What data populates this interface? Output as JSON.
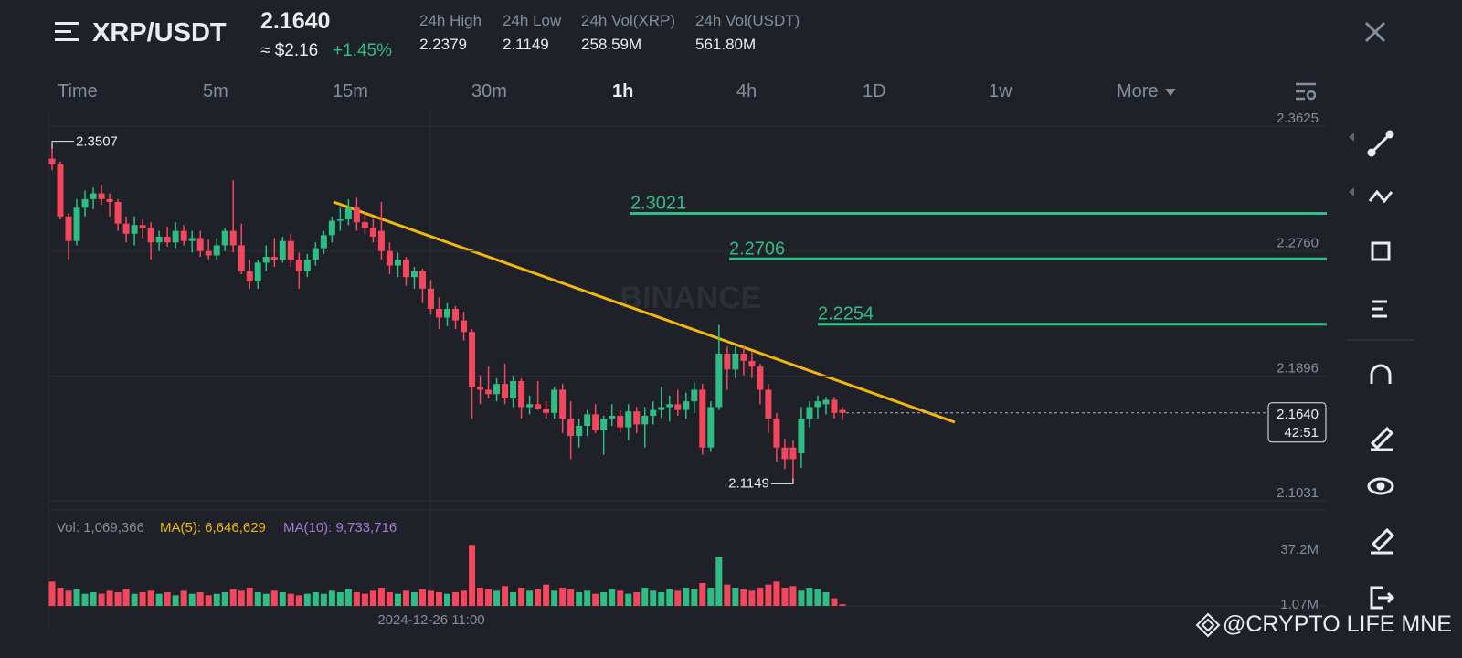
{
  "header": {
    "pair": "XRP/USDT",
    "price": "2.1640",
    "usd": "≈ $2.16",
    "change": "+1.45%",
    "stats": [
      {
        "label": "24h High",
        "value": "2.2379"
      },
      {
        "label": "24h Low",
        "value": "2.1149"
      },
      {
        "label": "24h Vol(XRP)",
        "value": "258.59M"
      },
      {
        "label": "24h Vol(USDT)",
        "value": "561.80M"
      }
    ]
  },
  "tabs": [
    "Time",
    "5m",
    "15m",
    "30m",
    "1h",
    "4h",
    "1D",
    "1w",
    "More"
  ],
  "active_tab": "1h",
  "watermark": "BINANCE",
  "credit": "@CRYPTO LIFE MNE",
  "chart_data": {
    "type": "candlestick",
    "ylim": [
      2.0968,
      2.3739
    ],
    "yticks": [
      2.3625,
      {
        "value": 2.276,
        "label": "2.2760"
      },
      2.1896,
      2.1031
    ],
    "grid": true,
    "up_color": "#2ebd85",
    "down_color": "#f6465d",
    "x_label": "2024-12-26 11:00",
    "levels": [
      2.3021,
      2.2706,
      2.2254
    ],
    "level_color": "#2ebd85",
    "last_price": {
      "value": 2.164,
      "label": "2.1640"
    },
    "countdown": "42:51",
    "candles": [
      [
        2.34,
        2.3507,
        2.332,
        2.336
      ],
      [
        2.336,
        2.338,
        2.298,
        2.3
      ],
      [
        2.3,
        2.302,
        2.27,
        2.283
      ],
      [
        2.283,
        2.312,
        2.28,
        2.306
      ],
      [
        2.306,
        2.318,
        2.3,
        2.312
      ],
      [
        2.312,
        2.32,
        2.305,
        2.316
      ],
      [
        2.316,
        2.322,
        2.308,
        2.312
      ],
      [
        2.312,
        2.316,
        2.3,
        2.31
      ],
      [
        2.31,
        2.312,
        2.29,
        2.295
      ],
      [
        2.295,
        2.3,
        2.282,
        2.288
      ],
      [
        2.288,
        2.3,
        2.28,
        2.294
      ],
      [
        2.294,
        2.298,
        2.285,
        2.292
      ],
      [
        2.292,
        2.296,
        2.27,
        2.282
      ],
      [
        2.282,
        2.29,
        2.276,
        2.286
      ],
      [
        2.286,
        2.293,
        2.279,
        2.282
      ],
      [
        2.282,
        2.296,
        2.278,
        2.29
      ],
      [
        2.29,
        2.294,
        2.28,
        2.283
      ],
      [
        2.283,
        2.29,
        2.275,
        2.285
      ],
      [
        2.285,
        2.29,
        2.272,
        2.276
      ],
      [
        2.276,
        2.284,
        2.27,
        2.273
      ],
      [
        2.273,
        2.285,
        2.27,
        2.28
      ],
      [
        2.28,
        2.292,
        2.276,
        2.29
      ],
      [
        2.29,
        2.325,
        2.275,
        2.28
      ],
      [
        2.28,
        2.295,
        2.26,
        2.262
      ],
      [
        2.262,
        2.27,
        2.25,
        2.255
      ],
      [
        2.255,
        2.27,
        2.25,
        2.268
      ],
      [
        2.268,
        2.28,
        2.262,
        2.272
      ],
      [
        2.272,
        2.285,
        2.265,
        2.27
      ],
      [
        2.27,
        2.286,
        2.268,
        2.283
      ],
      [
        2.283,
        2.288,
        2.265,
        2.27
      ],
      [
        2.27,
        2.275,
        2.25,
        2.262
      ],
      [
        2.262,
        2.274,
        2.258,
        2.27
      ],
      [
        2.27,
        2.282,
        2.266,
        2.278
      ],
      [
        2.278,
        2.29,
        2.274,
        2.287
      ],
      [
        2.287,
        2.3,
        2.282,
        2.297
      ],
      [
        2.297,
        2.306,
        2.29,
        2.298
      ],
      [
        2.298,
        2.312,
        2.294,
        2.306
      ],
      [
        2.306,
        2.313,
        2.29,
        2.296
      ],
      [
        2.296,
        2.303,
        2.288,
        2.292
      ],
      [
        2.292,
        2.298,
        2.282,
        2.286
      ],
      [
        2.29,
        2.31,
        2.27,
        2.276
      ],
      [
        2.276,
        2.282,
        2.26,
        2.266
      ],
      [
        2.266,
        2.275,
        2.258,
        2.27
      ],
      [
        2.27,
        2.272,
        2.252,
        2.258
      ],
      [
        2.258,
        2.265,
        2.25,
        2.262
      ],
      [
        2.262,
        2.264,
        2.24,
        2.25
      ],
      [
        2.25,
        2.256,
        2.232,
        2.236
      ],
      [
        2.236,
        2.244,
        2.222,
        2.23
      ],
      [
        2.23,
        2.24,
        2.224,
        2.236
      ],
      [
        2.236,
        2.238,
        2.222,
        2.228
      ],
      [
        2.228,
        2.234,
        2.214,
        2.22
      ],
      [
        2.22,
        2.222,
        2.16,
        2.182
      ],
      [
        2.182,
        2.19,
        2.17,
        2.18
      ],
      [
        2.18,
        2.196,
        2.174,
        2.177
      ],
      [
        2.177,
        2.188,
        2.172,
        2.184
      ],
      [
        2.184,
        2.198,
        2.17,
        2.174
      ],
      [
        2.174,
        2.19,
        2.168,
        2.186
      ],
      [
        2.186,
        2.188,
        2.16,
        2.168
      ],
      [
        2.168,
        2.176,
        2.163,
        2.17
      ],
      [
        2.17,
        2.186,
        2.166,
        2.167
      ],
      [
        2.167,
        2.172,
        2.16,
        2.164
      ],
      [
        2.164,
        2.182,
        2.16,
        2.18
      ],
      [
        2.18,
        2.184,
        2.15,
        2.16
      ],
      [
        2.16,
        2.172,
        2.132,
        2.148
      ],
      [
        2.148,
        2.16,
        2.14,
        2.155
      ],
      [
        2.155,
        2.166,
        2.148,
        2.163
      ],
      [
        2.163,
        2.17,
        2.15,
        2.152
      ],
      [
        2.152,
        2.162,
        2.135,
        2.16
      ],
      [
        2.16,
        2.17,
        2.155,
        2.162
      ],
      [
        2.162,
        2.166,
        2.15,
        2.154
      ],
      [
        2.154,
        2.17,
        2.145,
        2.165
      ],
      [
        2.165,
        2.168,
        2.15,
        2.156
      ],
      [
        2.156,
        2.168,
        2.14,
        2.162
      ],
      [
        2.162,
        2.172,
        2.156,
        2.166
      ],
      [
        2.166,
        2.182,
        2.16,
        2.168
      ],
      [
        2.168,
        2.176,
        2.158,
        2.17
      ],
      [
        2.17,
        2.18,
        2.162,
        2.166
      ],
      [
        2.166,
        2.178,
        2.16,
        2.172
      ],
      [
        2.172,
        2.185,
        2.164,
        2.18
      ],
      [
        2.18,
        2.184,
        2.135,
        2.14
      ],
      [
        2.14,
        2.172,
        2.137,
        2.168
      ],
      [
        2.168,
        2.225,
        2.166,
        2.205
      ],
      [
        2.205,
        2.21,
        2.18,
        2.194
      ],
      [
        2.194,
        2.21,
        2.188,
        2.205
      ],
      [
        2.205,
        2.21,
        2.19,
        2.2
      ],
      [
        2.2,
        2.206,
        2.188,
        2.196
      ],
      [
        2.196,
        2.198,
        2.17,
        2.18
      ],
      [
        2.18,
        2.184,
        2.15,
        2.16
      ],
      [
        2.16,
        2.164,
        2.13,
        2.14
      ],
      [
        2.14,
        2.146,
        2.125,
        2.132
      ],
      [
        2.14,
        2.145,
        2.1149,
        2.132
      ],
      [
        2.136,
        2.168,
        2.126,
        2.16
      ],
      [
        2.16,
        2.172,
        2.154,
        2.168
      ],
      [
        2.168,
        2.176,
        2.16,
        2.172
      ],
      [
        2.17,
        2.175,
        2.163,
        2.173
      ],
      [
        2.173,
        2.175,
        2.16,
        2.164
      ],
      [
        2.166,
        2.168,
        2.159,
        2.164
      ]
    ],
    "volume": {
      "label": "Vol: 1,069,366",
      "ma5": "MA(5): 6,646,629",
      "ma10": "MA(10): 9,733,716",
      "ylim": [
        0,
        45
      ],
      "yticks": [
        {
          "value": 37.2,
          "label": "37.2M"
        },
        {
          "value": 1.07,
          "label": "1.07M"
        }
      ],
      "values": [
        16,
        12,
        10,
        11,
        8,
        9,
        8,
        10,
        9,
        11,
        8,
        9,
        10,
        8,
        9,
        7,
        10,
        8,
        9,
        7,
        8,
        9,
        11,
        10,
        12,
        9,
        8,
        10,
        9,
        8,
        7,
        8,
        9,
        8,
        10,
        9,
        11,
        9,
        8,
        10,
        12,
        9,
        8,
        10,
        9,
        11,
        10,
        9,
        8,
        9,
        10,
        40,
        12,
        11,
        10,
        13,
        9,
        12,
        10,
        11,
        14,
        10,
        12,
        11,
        9,
        10,
        8,
        9,
        11,
        10,
        8,
        9,
        12,
        10,
        9,
        11,
        10,
        12,
        11,
        15,
        12,
        32,
        14,
        12,
        11,
        10,
        12,
        14,
        16,
        12,
        13,
        10,
        12,
        11,
        9,
        5,
        1.07
      ]
    }
  }
}
